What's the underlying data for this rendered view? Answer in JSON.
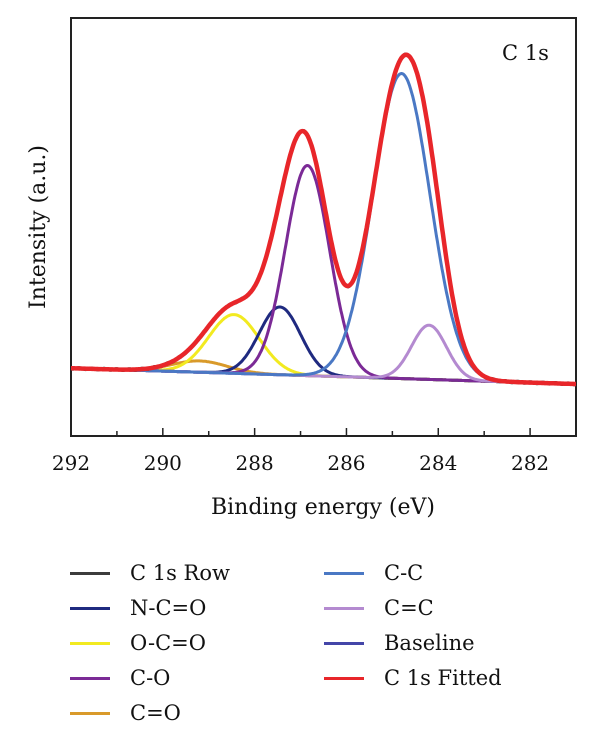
{
  "chart_data": {
    "type": "line",
    "annotation": "C 1s",
    "xlabel": "Binding energy (eV)",
    "ylabel": "Intensity (a.u.)",
    "x_reversed": true,
    "xlim": [
      292,
      281
    ],
    "ylim": [
      -0.3,
      1.55
    ],
    "x_ticks": [
      292,
      290,
      288,
      286,
      284,
      282
    ],
    "grid": false,
    "legend_position": "below",
    "series": [
      {
        "key": "raw",
        "name": "C 1s Row",
        "color": "#3c3c3c",
        "width": 3
      },
      {
        "key": "nco",
        "name": "N-C=O",
        "color": "#1f2a80",
        "width": 3,
        "peak": {
          "center": 287.45,
          "height": 0.3,
          "sigma": 0.45
        }
      },
      {
        "key": "oco",
        "name": "O-C=O",
        "color": "#f2ea20",
        "width": 3,
        "peak": {
          "center": 288.45,
          "height": 0.26,
          "sigma": 0.55
        }
      },
      {
        "key": "co",
        "name": "C-O",
        "color": "#7b2a96",
        "width": 3,
        "peak": {
          "center": 286.85,
          "height": 0.93,
          "sigma": 0.48
        }
      },
      {
        "key": "cdo",
        "name": "C=O",
        "color": "#d99a2a",
        "width": 3,
        "peak": {
          "center": 289.2,
          "height": 0.05,
          "sigma": 0.6
        }
      },
      {
        "key": "cc",
        "name": "C-C",
        "color": "#4a78c4",
        "width": 3,
        "peak": {
          "center": 284.8,
          "height": 1.35,
          "sigma": 0.62
        }
      },
      {
        "key": "cdc",
        "name": "C=C",
        "color": "#b48ad0",
        "width": 3,
        "peak": {
          "center": 284.2,
          "height": 0.24,
          "sigma": 0.38
        }
      },
      {
        "key": "base",
        "name": "Baseline",
        "color": "#4446a8",
        "width": 3
      },
      {
        "key": "fit",
        "name": "C 1s Fitted",
        "color": "#e8262a",
        "width": 4.5
      }
    ],
    "baseline": {
      "x": [
        292,
        281
      ],
      "y": [
        0.0,
        -0.07
      ]
    }
  }
}
